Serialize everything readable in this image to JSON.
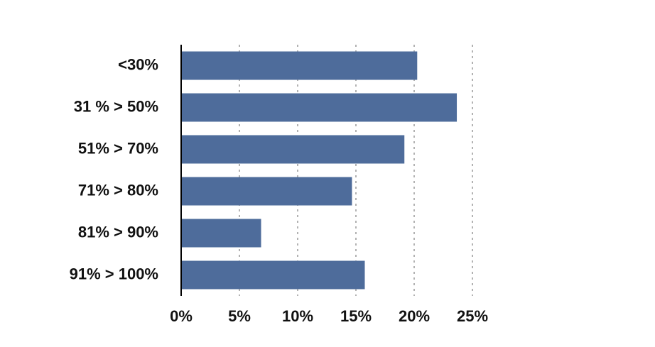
{
  "chart_data": {
    "type": "bar",
    "orientation": "horizontal",
    "categories": [
      "<30%",
      "31 % > 50%",
      "51% > 70%",
      "71% > 80%",
      "81% > 90%",
      "91% > 100%"
    ],
    "values": [
      20.2,
      23.6,
      19.1,
      14.6,
      6.8,
      15.7
    ],
    "color": "#4e6c9b",
    "xlim": [
      0,
      25
    ],
    "xticks": [
      {
        "value": 0,
        "label": "0%"
      },
      {
        "value": 5,
        "label": "5%"
      },
      {
        "value": 10,
        "label": "10%"
      },
      {
        "value": 15,
        "label": "15%"
      },
      {
        "value": 20,
        "label": "20%"
      },
      {
        "value": 25,
        "label": "25%"
      }
    ],
    "grid": true
  }
}
